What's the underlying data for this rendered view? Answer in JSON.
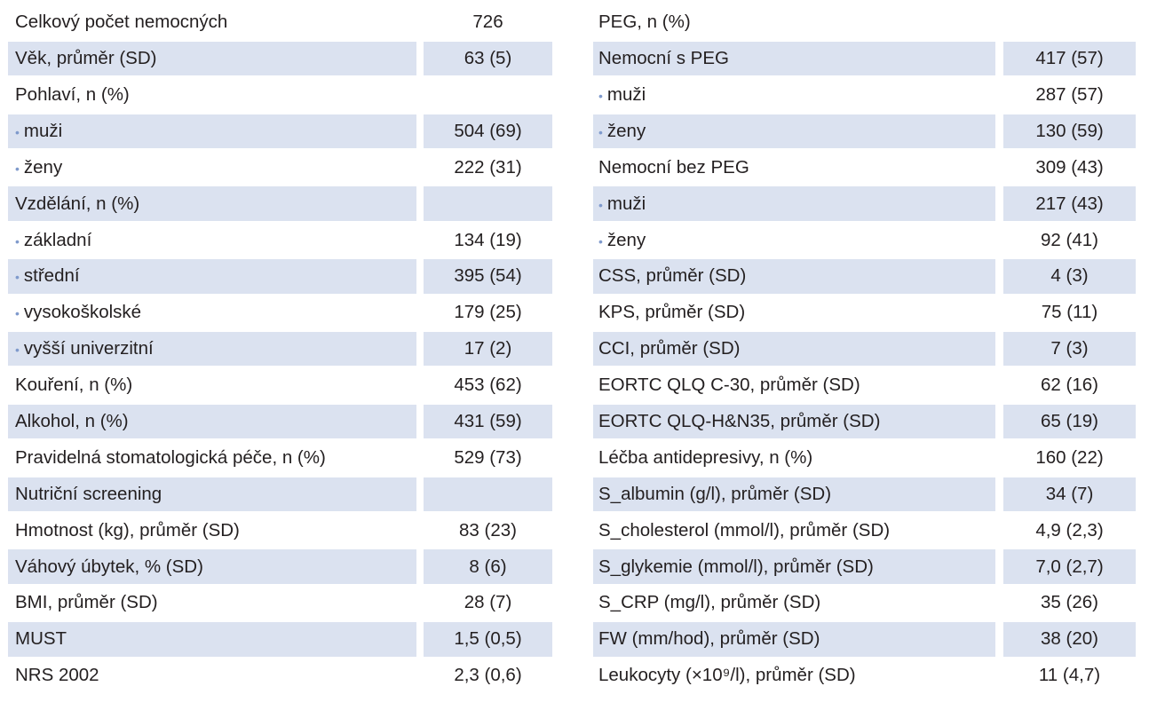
{
  "left_rows": [
    {
      "label": "Celkový počet nemocných",
      "value": "726",
      "bullet": false,
      "shaded": false
    },
    {
      "label": "Věk, průměr (SD)",
      "value": "63 (5)",
      "bullet": false,
      "shaded": true
    },
    {
      "label": "Pohlaví, n (%)",
      "value": "",
      "bullet": false,
      "shaded": false
    },
    {
      "label": "muži",
      "value": "504 (69)",
      "bullet": true,
      "shaded": true
    },
    {
      "label": "ženy",
      "value": "222 (31)",
      "bullet": true,
      "shaded": false
    },
    {
      "label": "Vzdělání, n (%)",
      "value": "",
      "bullet": false,
      "shaded": true
    },
    {
      "label": "základní",
      "value": "134 (19)",
      "bullet": true,
      "shaded": false
    },
    {
      "label": "střední",
      "value": "395 (54)",
      "bullet": true,
      "shaded": true
    },
    {
      "label": "vysokoškolské",
      "value": "179 (25)",
      "bullet": true,
      "shaded": false
    },
    {
      "label": "vyšší univerzitní",
      "value": "17 (2)",
      "bullet": true,
      "shaded": true
    },
    {
      "label": "Kouření, n (%)",
      "value": "453 (62)",
      "bullet": false,
      "shaded": false
    },
    {
      "label": "Alkohol, n (%)",
      "value": "431 (59)",
      "bullet": false,
      "shaded": true
    },
    {
      "label": "Pravidelná stomatologická péče, n (%)",
      "value": "529 (73)",
      "bullet": false,
      "shaded": false
    },
    {
      "label": "Nutriční screening",
      "value": "",
      "bullet": false,
      "shaded": true
    },
    {
      "label": "Hmotnost (kg), průměr (SD)",
      "value": "83 (23)",
      "bullet": false,
      "shaded": false
    },
    {
      "label": "Váhový úbytek, % (SD)",
      "value": "8 (6)",
      "bullet": false,
      "shaded": true
    },
    {
      "label": "BMI, průměr (SD)",
      "value": "28 (7)",
      "bullet": false,
      "shaded": false
    },
    {
      "label": "MUST",
      "value": "1,5 (0,5)",
      "bullet": false,
      "shaded": true
    },
    {
      "label": "NRS 2002",
      "value": "2,3 (0,6)",
      "bullet": false,
      "shaded": false
    }
  ],
  "right_rows": [
    {
      "label": "PEG, n (%)",
      "value": "",
      "bullet": false,
      "shaded": false
    },
    {
      "label": "Nemocní s PEG",
      "value": "417 (57)",
      "bullet": false,
      "shaded": true
    },
    {
      "label": "muži",
      "value": "287 (57)",
      "bullet": true,
      "shaded": false
    },
    {
      "label": "ženy",
      "value": "130 (59)",
      "bullet": true,
      "shaded": true
    },
    {
      "label": "Nemocní bez PEG",
      "value": "309 (43)",
      "bullet": false,
      "shaded": false
    },
    {
      "label": "muži",
      "value": "217 (43)",
      "bullet": true,
      "shaded": true
    },
    {
      "label": "ženy",
      "value": "92 (41)",
      "bullet": true,
      "shaded": false
    },
    {
      "label": "CSS, průměr (SD)",
      "value": "4 (3)",
      "bullet": false,
      "shaded": true
    },
    {
      "label": "KPS, průměr (SD)",
      "value": "75 (11)",
      "bullet": false,
      "shaded": false
    },
    {
      "label": "CCI, průměr (SD)",
      "value": "7 (3)",
      "bullet": false,
      "shaded": true
    },
    {
      "label": "EORTC QLQ C-30, průměr (SD)",
      "value": "62 (16)",
      "bullet": false,
      "shaded": false
    },
    {
      "label": "EORTC QLQ-H&N35, průměr (SD)",
      "value": "65 (19)",
      "bullet": false,
      "shaded": true
    },
    {
      "label": "Léčba antidepresivy, n (%)",
      "value": "160 (22)",
      "bullet": false,
      "shaded": false
    },
    {
      "label": "S_albumin (g/l), průměr (SD)",
      "value": "34 (7)",
      "bullet": false,
      "shaded": true
    },
    {
      "label": "S_cholesterol (mmol/l), průměr (SD)",
      "value": "4,9 (2,3)",
      "bullet": false,
      "shaded": false
    },
    {
      "label": "S_glykemie (mmol/l), průměr (SD)",
      "value": "7,0 (2,7)",
      "bullet": false,
      "shaded": true
    },
    {
      "label": "S_CRP (mg/l), průměr (SD)",
      "value": "35 (26)",
      "bullet": false,
      "shaded": false
    },
    {
      "label": "FW (mm/hod), průměr (SD)",
      "value": "38 (20)",
      "bullet": false,
      "shaded": true
    },
    {
      "label": "Leukocyty (×10⁹/l), průměr (SD)",
      "value": "11 (4,7)",
      "bullet": false,
      "shaded": false
    }
  ],
  "colors": {
    "shade": "#dbe2f0",
    "bullet": "#7f9acc",
    "text": "#231f20"
  },
  "bullet_char": "•"
}
